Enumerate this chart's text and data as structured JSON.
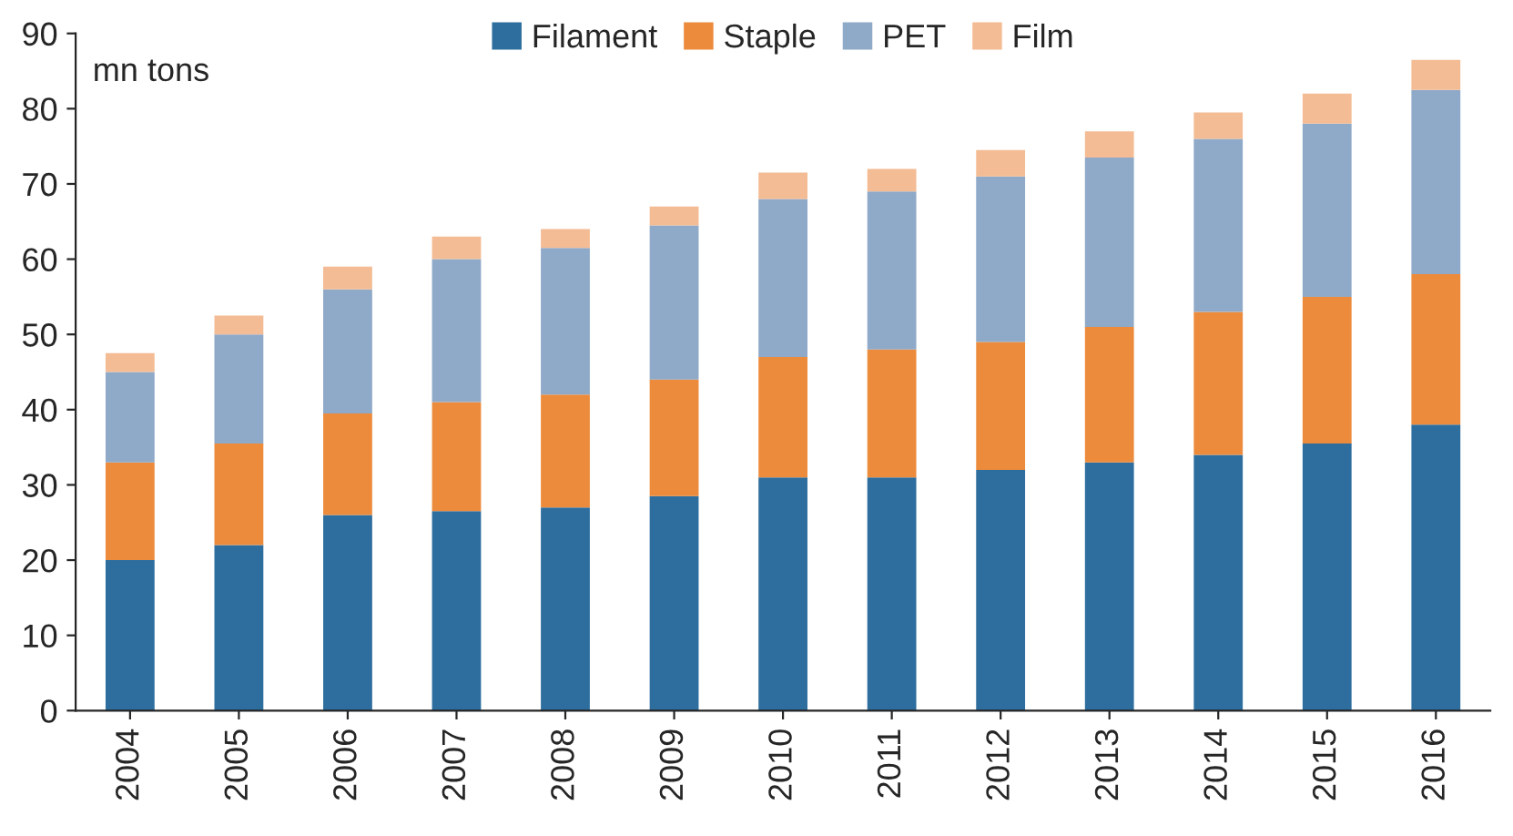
{
  "chart_data": {
    "type": "bar",
    "stacked": true,
    "ylabel": "mn tons",
    "categories": [
      "2004",
      "2005",
      "2006",
      "2007",
      "2008",
      "2009",
      "2010",
      "2011",
      "2012",
      "2013",
      "2014",
      "2015",
      "2016"
    ],
    "series": [
      {
        "name": "Filament",
        "color": "#2e6e9e",
        "values": [
          20,
          22,
          26,
          26.5,
          27,
          28.5,
          31,
          31,
          32,
          33,
          34,
          35.5,
          38
        ]
      },
      {
        "name": "Staple",
        "color": "#ed8b3c",
        "values": [
          13,
          13.5,
          13.5,
          14.5,
          15,
          15.5,
          16,
          17,
          17,
          18,
          19,
          19.5,
          20
        ]
      },
      {
        "name": "PET",
        "color": "#8fa9c8",
        "values": [
          12,
          14.5,
          16.5,
          19,
          19.5,
          20.5,
          21,
          21,
          22,
          22.5,
          23,
          23,
          24.5
        ]
      },
      {
        "name": "Film",
        "color": "#f4bc94",
        "values": [
          2.5,
          2.5,
          3,
          3,
          2.5,
          2.5,
          3.5,
          3,
          3.5,
          3.5,
          3.5,
          4,
          4
        ]
      }
    ],
    "ylim": [
      0,
      90
    ],
    "yticks": [
      0,
      10,
      20,
      30,
      40,
      50,
      60,
      70,
      80,
      90
    ],
    "grid": false,
    "legend": "top"
  }
}
